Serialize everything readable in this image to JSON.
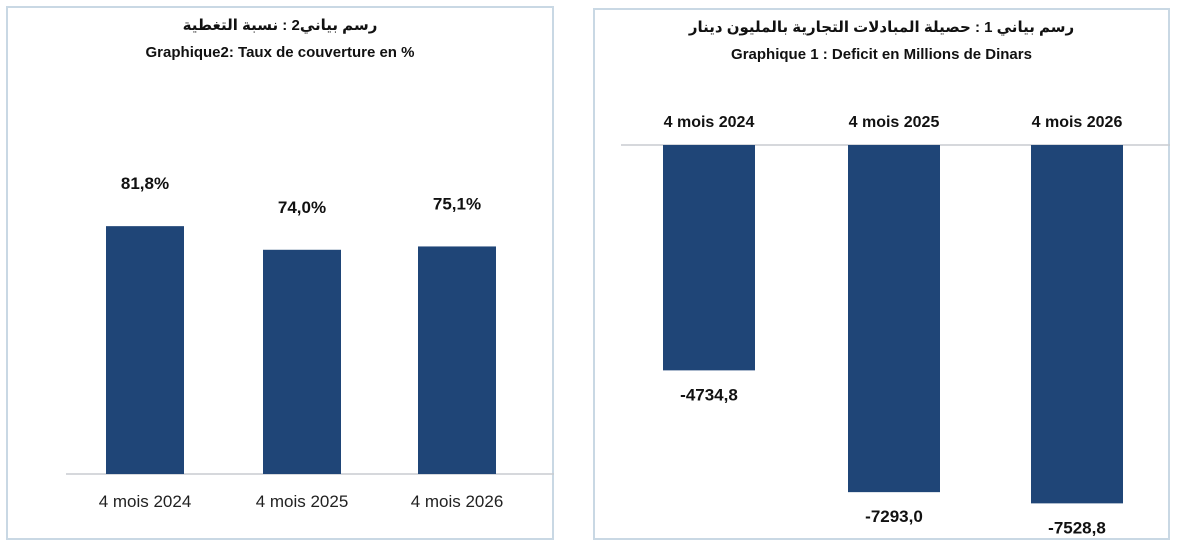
{
  "chart_data": [
    {
      "type": "bar",
      "title_ar": "رسم بياني2 :  نسبة التغطية",
      "title": "Graphique2: Taux de couverture en %",
      "categories": [
        "4 mois 2024",
        "4 mois 2025",
        "4 mois 2026"
      ],
      "values": [
        81.8,
        74.0,
        75.1
      ],
      "value_labels": [
        "81,8%",
        "74,0%",
        "75,1%"
      ],
      "ylim": [
        0,
        100
      ],
      "xlabel": "",
      "ylabel": "",
      "grid": false,
      "bar_color": "#1f4577"
    },
    {
      "type": "bar",
      "title_ar": "رسم بياني 1 :  حصيلة المبادلات التجارية بالمليون دينار",
      "title": "Graphique 1 : Deficit en Millions de Dinars",
      "categories": [
        "4 mois 2024",
        "4 mois 2025",
        "4 mois 2026"
      ],
      "values": [
        -4734.8,
        -7293.0,
        -7528.8
      ],
      "value_labels": [
        "-4734,8",
        "-7293,0",
        "-7528,8"
      ],
      "ylim": [
        -7600,
        0
      ],
      "xlabel": "",
      "ylabel": "",
      "grid": false,
      "bar_color": "#1f4577"
    }
  ]
}
